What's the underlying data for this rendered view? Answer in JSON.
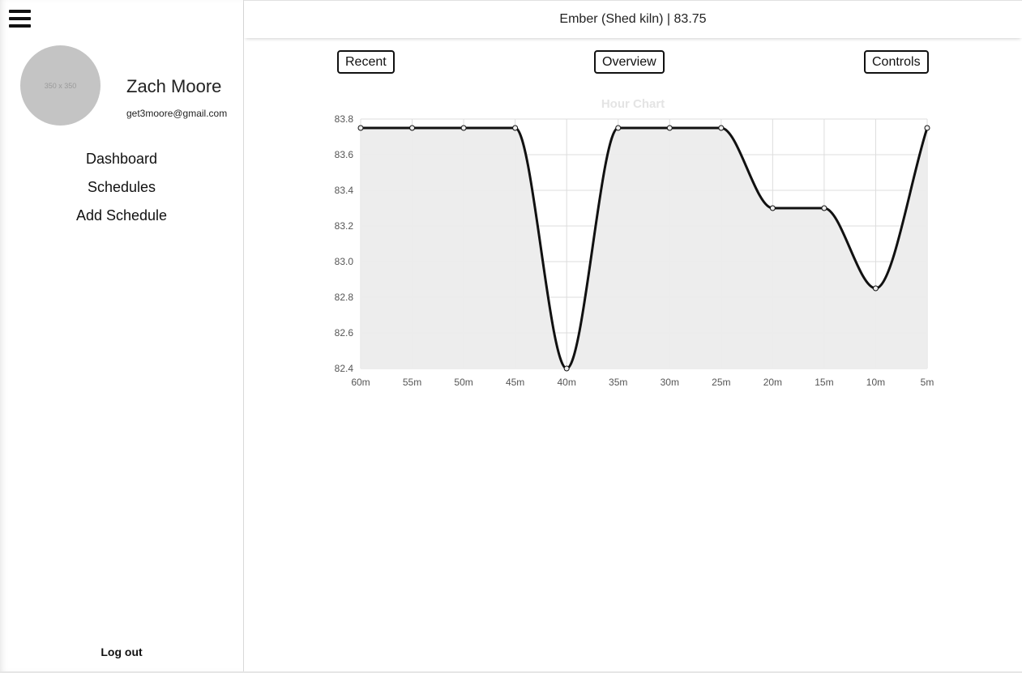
{
  "sidebar": {
    "avatar_placeholder": "350 x 350",
    "user_name": "Zach Moore",
    "user_email": "get3moore@gmail.com",
    "nav": [
      {
        "label": "Dashboard"
      },
      {
        "label": "Schedules"
      },
      {
        "label": "Add Schedule"
      }
    ],
    "logout_label": "Log out"
  },
  "header": {
    "title": "Ember (Shed kiln) | 83.75"
  },
  "tabs": {
    "recent": "Recent",
    "overview": "Overview",
    "controls": "Controls"
  },
  "chart_data": {
    "type": "line",
    "title": "Hour Chart",
    "categories": [
      "60m",
      "55m",
      "50m",
      "45m",
      "40m",
      "35m",
      "30m",
      "25m",
      "20m",
      "15m",
      "10m",
      "5m"
    ],
    "series": [
      {
        "values": [
          83.75,
          83.75,
          83.75,
          83.75,
          82.4,
          83.75,
          83.75,
          83.75,
          83.3,
          83.3,
          82.85,
          83.75
        ]
      }
    ],
    "yticks": [
      "83.8",
      "83.6",
      "83.4",
      "83.2",
      "83.0",
      "82.8",
      "82.6",
      "82.4"
    ],
    "ylim": [
      82.4,
      83.8
    ],
    "grid": true,
    "fill": true,
    "line_color": "#111111",
    "fill_color": "#ececec",
    "grid_color": "#dddddd",
    "title_color": "#e4e4e4"
  }
}
